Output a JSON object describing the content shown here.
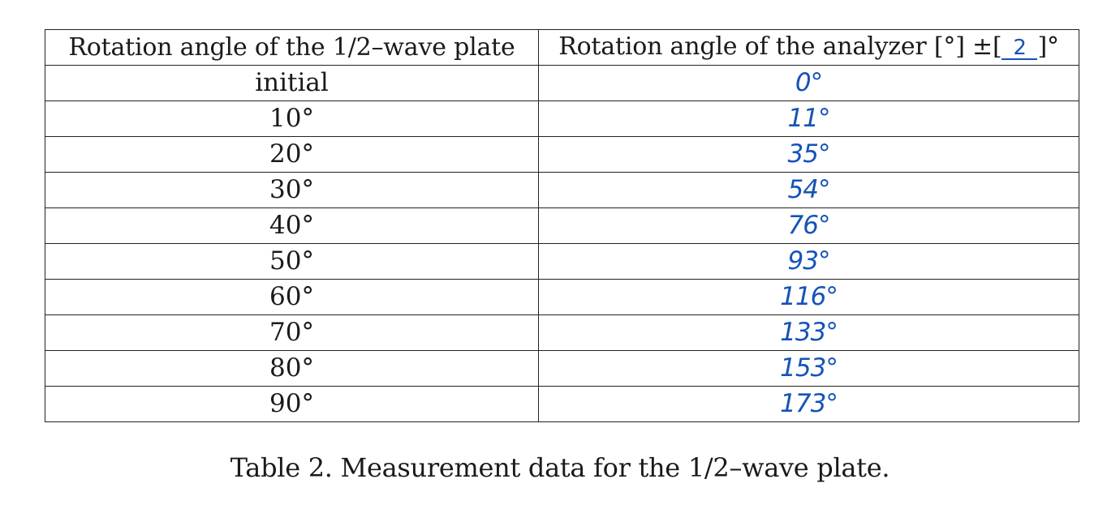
{
  "table": {
    "header": {
      "col1": "Rotation angle of the 1/2–wave plate",
      "col2_prefix": "Rotation angle of the analyzer [°] ±[",
      "col2_uncertainty": "2",
      "col2_suffix": "]°"
    },
    "rows": [
      {
        "plate_angle": "initial",
        "analyzer_angle": "0°"
      },
      {
        "plate_angle": "10°",
        "analyzer_angle": "11°"
      },
      {
        "plate_angle": "20°",
        "analyzer_angle": "35°"
      },
      {
        "plate_angle": "30°",
        "analyzer_angle": "54°"
      },
      {
        "plate_angle": "40°",
        "analyzer_angle": "76°"
      },
      {
        "plate_angle": "50°",
        "analyzer_angle": "93°"
      },
      {
        "plate_angle": "60°",
        "analyzer_angle": "116°"
      },
      {
        "plate_angle": "70°",
        "analyzer_angle": "133°"
      },
      {
        "plate_angle": "80°",
        "analyzer_angle": "153°"
      },
      {
        "plate_angle": "90°",
        "analyzer_angle": "173°"
      }
    ]
  },
  "caption": "Table 2. Measurement data for the 1/2–wave plate."
}
